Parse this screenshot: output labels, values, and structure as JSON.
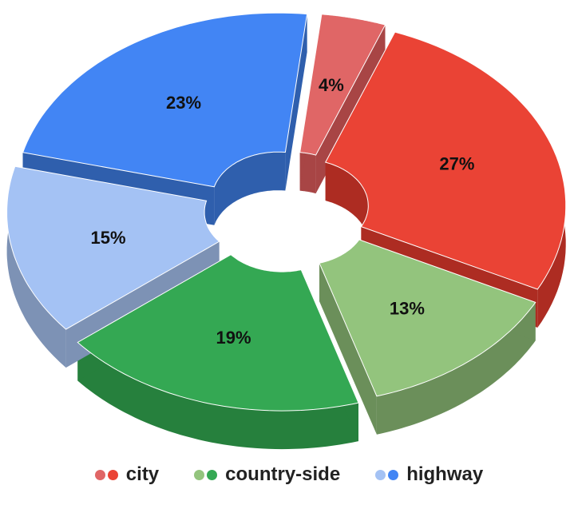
{
  "chart_data": {
    "type": "pie",
    "style": "3d-exploded-donut",
    "slices": [
      {
        "label": "4%",
        "value": 4,
        "group": "city",
        "color": "#e06666",
        "side_color": "#a84545"
      },
      {
        "label": "27%",
        "value": 27,
        "group": "city",
        "color": "#ea4335",
        "side_color": "#ad2c22"
      },
      {
        "label": "13%",
        "value": 13,
        "group": "country-side",
        "color": "#93c47d",
        "side_color": "#6b8f5a"
      },
      {
        "label": "19%",
        "value": 19,
        "group": "country-side",
        "color": "#34a853",
        "side_color": "#26803d"
      },
      {
        "label": "15%",
        "value": 15,
        "group": "highway",
        "color": "#a4c2f4",
        "side_color": "#7d92b5"
      },
      {
        "label": "23%",
        "value": 23,
        "group": "highway",
        "color": "#4285f4",
        "side_color": "#2f5fad"
      }
    ],
    "legend": [
      {
        "label": "city",
        "colors": [
          "#e06666",
          "#ea4335"
        ]
      },
      {
        "label": "country-side",
        "colors": [
          "#93c47d",
          "#34a853"
        ]
      },
      {
        "label": "highway",
        "colors": [
          "#a4c2f4",
          "#4285f4"
        ]
      }
    ],
    "legend_position": "bottom"
  }
}
